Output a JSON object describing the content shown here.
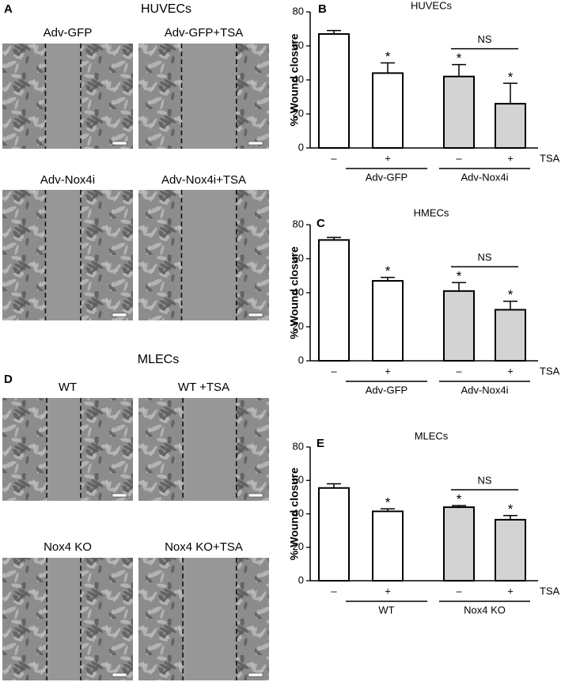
{
  "panels": [
    {
      "label": "A",
      "title": "HUVECs",
      "images": [
        "Adv-GFP",
        "Adv-GFP+TSA",
        "Adv-Nox4i",
        "Adv-Nox4i+TSA"
      ]
    },
    {
      "label": "D",
      "title": "MLECs",
      "images": [
        "WT",
        "WT +TSA",
        "Nox4 KO",
        "Nox4 KO+TSA"
      ]
    }
  ],
  "chart_data": [
    {
      "type": "bar",
      "panel_label": "B",
      "title": "HUVECs",
      "y_label": "% Wound closure",
      "categories": [
        "–",
        "+",
        "–",
        "+"
      ],
      "treatment_label": "TSA",
      "groups": [
        "Adv-GFP",
        "Adv-Nox4i"
      ],
      "values": [
        67,
        44,
        42,
        26
      ],
      "errors": [
        2,
        6,
        7,
        12
      ],
      "colors": [
        "#ffffff",
        "#ffffff",
        "#d3d3d3",
        "#d3d3d3"
      ],
      "significance": [
        null,
        "*",
        "*",
        "*"
      ],
      "comparison": "NS",
      "ylim": [
        0,
        80
      ],
      "yticks": [
        0,
        20,
        40,
        60,
        80
      ]
    },
    {
      "type": "bar",
      "panel_label": "C",
      "title": "HMECs",
      "y_label": "% Wound closure",
      "categories": [
        "–",
        "+",
        "–",
        "+"
      ],
      "treatment_label": "TSA",
      "groups": [
        "Adv-GFP",
        "Adv-Nox4i"
      ],
      "values": [
        71,
        47,
        41,
        30
      ],
      "errors": [
        1.5,
        2,
        5,
        5
      ],
      "colors": [
        "#ffffff",
        "#ffffff",
        "#d3d3d3",
        "#d3d3d3"
      ],
      "significance": [
        null,
        "*",
        "*",
        "*"
      ],
      "comparison": "NS",
      "ylim": [
        0,
        80
      ],
      "yticks": [
        0,
        20,
        40,
        60,
        80
      ]
    },
    {
      "type": "bar",
      "panel_label": "E",
      "title": "MLECs",
      "y_label": "% Wound closure",
      "categories": [
        "–",
        "+",
        "–",
        "+"
      ],
      "treatment_label": "TSA",
      "groups": [
        "WT",
        "Nox4 KO"
      ],
      "values": [
        55.5,
        41.5,
        44,
        36.5
      ],
      "errors": [
        2.5,
        1.5,
        1,
        2.5
      ],
      "colors": [
        "#ffffff",
        "#ffffff",
        "#d3d3d3",
        "#d3d3d3"
      ],
      "significance": [
        null,
        "*",
        "*",
        "*"
      ],
      "comparison": "NS",
      "ylim": [
        0,
        80
      ],
      "yticks": [
        0,
        20,
        40,
        60,
        80
      ]
    }
  ]
}
